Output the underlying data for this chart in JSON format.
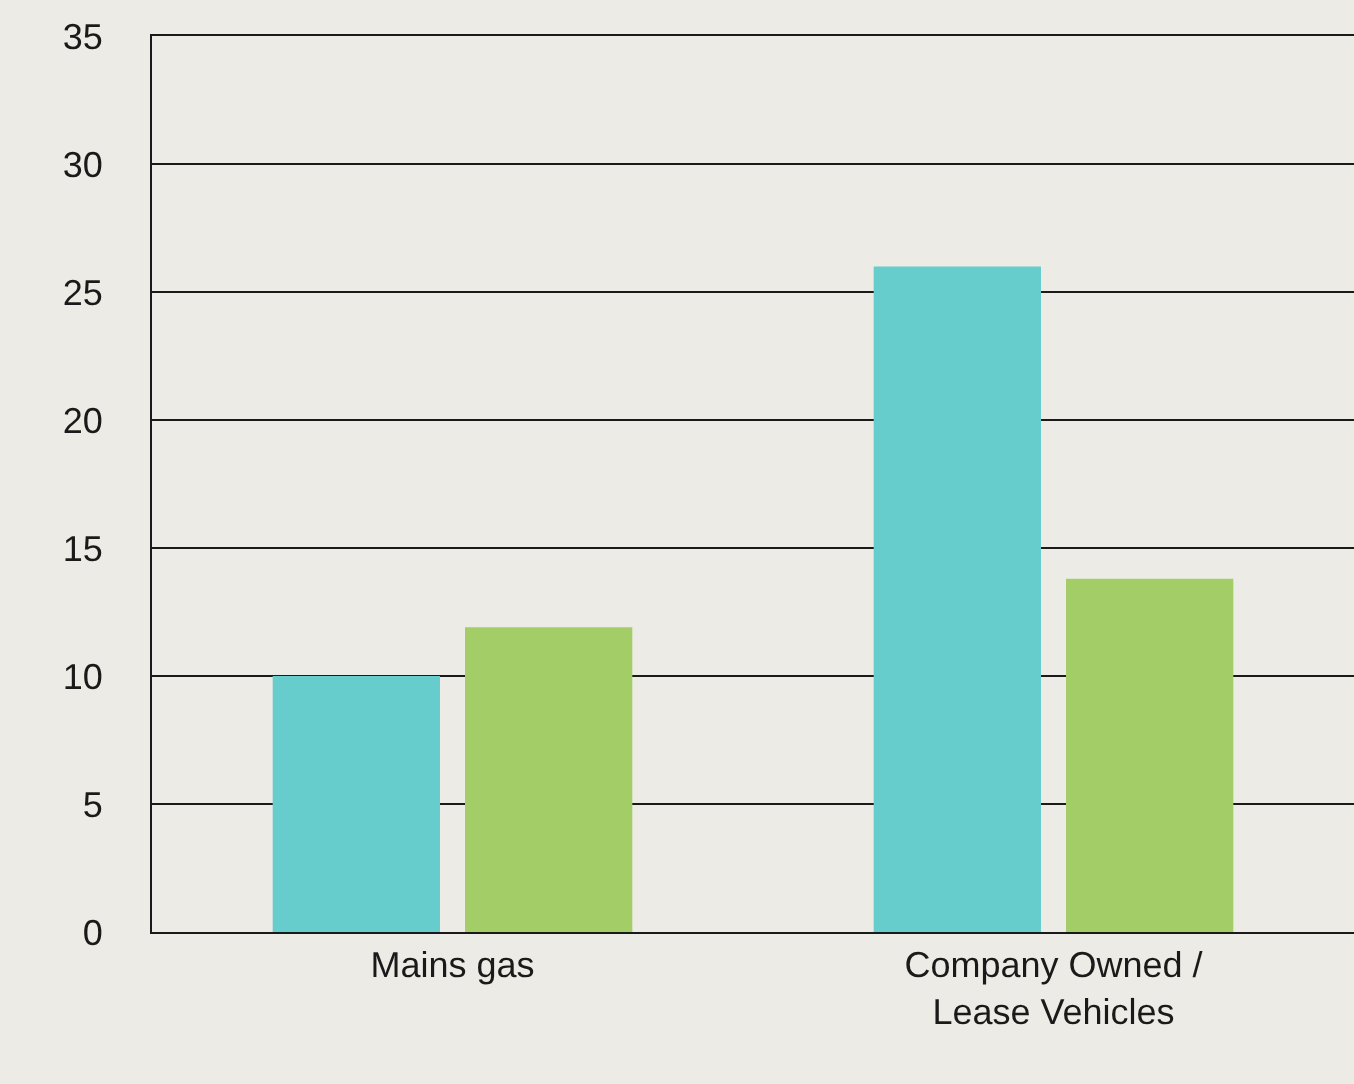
{
  "chart_data": {
    "type": "bar",
    "categories": [
      "Mains gas",
      "Company Owned / Lease Vehicles"
    ],
    "series": [
      {
        "color": "#66cdcc",
        "values": [
          10,
          26
        ]
      },
      {
        "color": "#a3cd67",
        "values": [
          11.9,
          13.8
        ]
      }
    ],
    "ylim": [
      0,
      35
    ],
    "yticks": [
      0,
      5,
      10,
      15,
      20,
      25,
      30,
      35
    ],
    "grid": "y"
  }
}
